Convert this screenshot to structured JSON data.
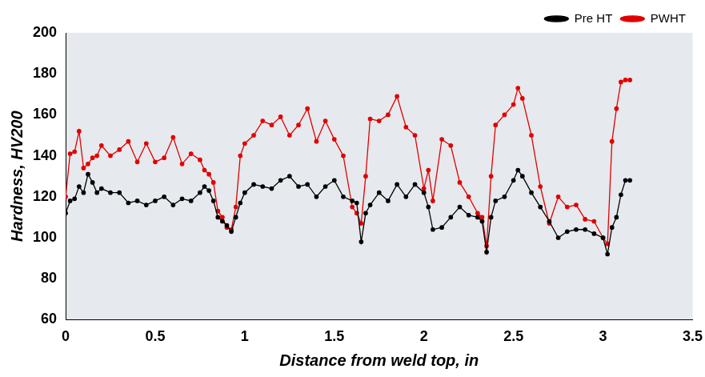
{
  "chart_data": {
    "type": "line",
    "x_label": "Distance from weld top, in",
    "y_label": "Hardness, HV200",
    "x": [
      0,
      0.025,
      0.05,
      0.075,
      0.1,
      0.125,
      0.15,
      0.175,
      0.2,
      0.25,
      0.3,
      0.35,
      0.4,
      0.45,
      0.5,
      0.55,
      0.6,
      0.65,
      0.7,
      0.75,
      0.775,
      0.8,
      0.825,
      0.85,
      0.875,
      0.9,
      0.925,
      0.95,
      0.975,
      1.0,
      1.05,
      1.1,
      1.15,
      1.2,
      1.25,
      1.3,
      1.35,
      1.4,
      1.45,
      1.5,
      1.55,
      1.6,
      1.625,
      1.65,
      1.675,
      1.7,
      1.75,
      1.8,
      1.85,
      1.9,
      1.95,
      2.0,
      2.025,
      2.05,
      2.1,
      2.15,
      2.2,
      2.25,
      2.3,
      2.325,
      2.35,
      2.375,
      2.4,
      2.45,
      2.5,
      2.525,
      2.55,
      2.6,
      2.65,
      2.7,
      2.75,
      2.8,
      2.85,
      2.9,
      2.95,
      3.0,
      3.025,
      3.05,
      3.075,
      3.1,
      3.125,
      3.15
    ],
    "series": [
      {
        "name": "Pre HT",
        "color": "#000000",
        "marker": "circle",
        "line_style": "solid",
        "values": [
          112,
          118,
          119,
          125,
          122,
          131,
          127,
          122,
          124,
          122,
          122,
          117,
          118,
          116,
          118,
          120,
          116,
          119,
          118,
          122,
          125,
          123,
          118,
          110,
          108,
          106,
          103,
          110,
          117,
          122,
          126,
          125,
          124,
          128,
          130,
          125,
          126,
          120,
          125,
          128,
          120,
          118,
          117,
          98,
          112,
          116,
          122,
          118,
          126,
          120,
          126,
          122,
          115,
          104,
          105,
          110,
          115,
          111,
          110,
          108,
          93,
          110,
          118,
          120,
          128,
          133,
          130,
          122,
          115,
          108,
          100,
          103,
          104,
          104,
          102,
          100,
          92,
          105,
          110,
          121,
          128,
          128
        ]
      },
      {
        "name": "PWHT",
        "color": "#e00000",
        "marker": "circle",
        "line_style": "solid",
        "values": [
          120,
          141,
          142,
          152,
          134,
          136,
          139,
          140,
          145,
          140,
          143,
          147,
          137,
          146,
          137,
          139,
          149,
          136,
          141,
          138,
          133,
          131,
          127,
          113,
          110,
          105,
          104,
          115,
          140,
          146,
          150,
          157,
          155,
          159,
          150,
          155,
          163,
          147,
          157,
          148,
          140,
          115,
          112,
          107,
          130,
          158,
          157,
          160,
          169,
          154,
          150,
          124,
          133,
          118,
          148,
          145,
          127,
          120,
          112,
          110,
          96,
          130,
          155,
          160,
          165,
          173,
          168,
          150,
          125,
          107,
          120,
          115,
          116,
          109,
          108,
          100,
          97,
          147,
          163,
          176,
          177,
          177
        ]
      }
    ],
    "xlim": [
      0,
      3.5
    ],
    "xticks": [
      0,
      0.5,
      1,
      1.5,
      2,
      2.5,
      3,
      3.5
    ],
    "ylim": [
      60,
      200
    ],
    "yticks": [
      60,
      80,
      100,
      120,
      140,
      160,
      180,
      200
    ],
    "grid": false,
    "legend": "top right"
  }
}
